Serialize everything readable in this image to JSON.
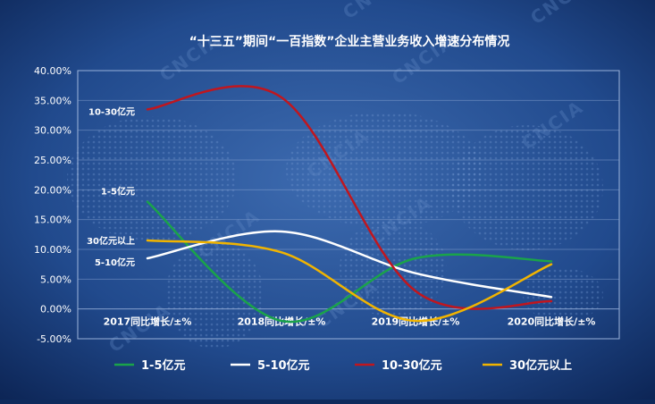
{
  "chart_data": {
    "type": "line",
    "title": "“十三五”期间“一百指数”企业主营业务收入增速分布情况",
    "categories": [
      "2017同比增长/±%",
      "2018同比增长/±%",
      "2019同比增长/±%",
      "2020同比增长/±%"
    ],
    "ylim": [
      -5,
      40
    ],
    "yticks": [
      "-5.00%",
      "0.00%",
      "5.00%",
      "10.00%",
      "15.00%",
      "20.00%",
      "25.00%",
      "30.00%",
      "35.00%",
      "40.00%"
    ],
    "grid": true,
    "legend_position": "bottom",
    "series": [
      {
        "name": "1-5亿元",
        "color": "#1aa34a",
        "values": [
          18,
          -2,
          8.5,
          8
        ]
      },
      {
        "name": "5-10亿元",
        "color": "#ffffff",
        "values": [
          8.5,
          13,
          6,
          2
        ]
      },
      {
        "name": "10-30亿元",
        "color": "#c0161e",
        "values": [
          33.5,
          35.5,
          3,
          1.3
        ]
      },
      {
        "name": "30亿元以上",
        "color": "#f1b400",
        "values": [
          11.5,
          9.5,
          -2,
          7.5
        ]
      }
    ],
    "annotations": [
      "10-30亿元",
      "1-5亿元",
      "30亿元以上",
      "5-10亿元"
    ],
    "watermark": "CNCIA"
  }
}
